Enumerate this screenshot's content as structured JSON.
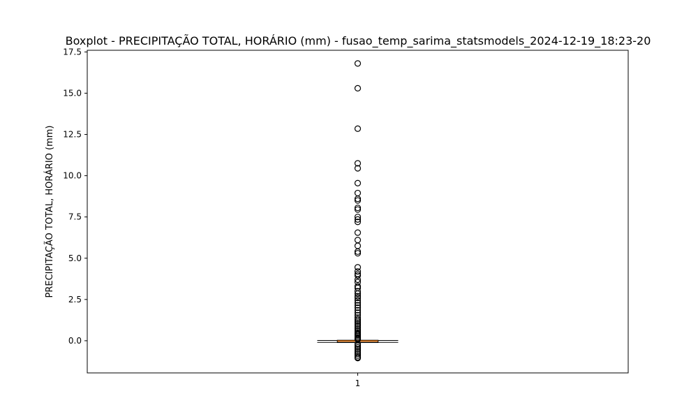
{
  "chart_data": {
    "type": "boxplot",
    "title": "Boxplot - PRECIPITAÇÃO TOTAL, HORÁRIO (mm) - fusao_temp_sarima_statsmodels_2024-12-19_18:23-20",
    "xlabel": "",
    "ylabel": "PRECIPITAÇÃO TOTAL, HORÁRIO (mm)",
    "categories": [
      "1"
    ],
    "ylim": [
      -1.95,
      17.6
    ],
    "yticks": [
      0.0,
      2.5,
      5.0,
      7.5,
      10.0,
      12.5,
      15.0,
      17.5
    ],
    "ytick_labels": [
      "0.0",
      "2.5",
      "5.0",
      "7.5",
      "10.0",
      "12.5",
      "15.0",
      "17.5"
    ],
    "grid": false,
    "box": {
      "q1": -0.1,
      "median": -0.02,
      "q3": 0.02,
      "whisker_low": -0.1,
      "whisker_high": 0.02
    },
    "outliers": [
      16.8,
      15.3,
      12.85,
      10.75,
      10.45,
      9.55,
      8.95,
      8.6,
      8.5,
      8.05,
      7.95,
      7.5,
      7.35,
      7.2,
      6.55,
      6.1,
      5.75,
      5.4,
      5.3,
      4.45,
      4.2,
      4.05,
      3.95,
      3.7,
      3.55,
      3.3,
      3.2,
      3.0,
      2.85,
      2.7,
      2.6,
      2.45,
      2.3,
      2.15,
      2.0,
      1.85,
      1.7,
      1.55,
      1.4,
      1.3,
      1.2,
      1.1,
      1.0,
      0.9,
      0.8,
      0.7,
      0.6,
      0.5,
      0.42,
      0.35,
      0.28,
      0.2,
      0.13,
      0.08,
      -0.2,
      -0.3,
      -0.4,
      -0.5,
      -0.6,
      -0.7,
      -0.8,
      -0.9,
      -1.0,
      -1.05
    ],
    "colors": {
      "box_edge": "#000000",
      "median": "#ff7f0e",
      "flier_edge": "#000000"
    }
  }
}
